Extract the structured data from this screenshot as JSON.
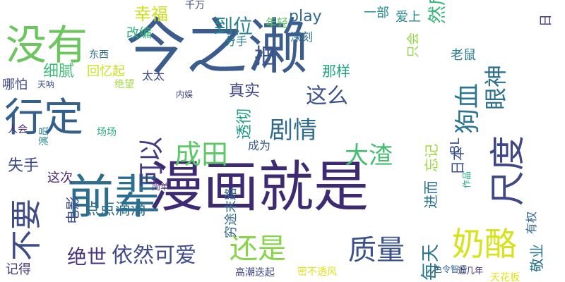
{
  "background": "#ffffff",
  "words": [
    {
      "text": "今之濑",
      "color": "#3b5c8c"
    },
    {
      "text": "漫画就是",
      "color": "#3d2a72"
    },
    {
      "text": "前辈",
      "color": "#2c6e8e"
    },
    {
      "text": "没有",
      "color": "#6cc55e"
    },
    {
      "text": "行定",
      "color": "#355f8d"
    },
    {
      "text": "尺度",
      "color": "#3f4788"
    },
    {
      "text": "奶酪",
      "color": "#d8e219"
    },
    {
      "text": "不要",
      "color": "#3e4b89"
    },
    {
      "text": "质量",
      "color": "#3b528b"
    },
    {
      "text": "还是",
      "color": "#86d549"
    },
    {
      "text": "成田",
      "color": "#5ac864"
    },
    {
      "text": "狗血",
      "color": "#2b758e"
    },
    {
      "text": "可以",
      "color": "#443a83"
    },
    {
      "text": "剧情",
      "color": "#2f6b8e"
    },
    {
      "text": "大渣",
      "color": "#44bf70"
    },
    {
      "text": "眼神",
      "color": "#2d708e"
    },
    {
      "text": "依然可爱",
      "color": "#3f4a8a"
    },
    {
      "text": "绝世",
      "color": "#46337e"
    },
    {
      "text": "这么",
      "color": "#3b518b"
    },
    {
      "text": "到位",
      "color": "#26828e"
    },
    {
      "text": "幸福",
      "color": "#cde11d"
    },
    {
      "text": "然后",
      "color": "#35b779"
    },
    {
      "text": "细腻",
      "color": "#3dbc74"
    },
    {
      "text": "点点滴滴",
      "color": "#2e6f8e"
    },
    {
      "text": "每天",
      "color": "#2a768e"
    },
    {
      "text": "真实",
      "color": "#404688"
    },
    {
      "text": "透彻",
      "color": "#1f9e89"
    },
    {
      "text": "失手",
      "color": "#3e4989"
    },
    {
      "text": "那样",
      "color": "#21a685"
    },
    {
      "text": "把",
      "color": "#3b528b"
    },
    {
      "text": "play",
      "color": "#31688e"
    },
    {
      "text": "改编",
      "color": "#30b07a"
    },
    {
      "text": "回忆起",
      "color": "#cae11f"
    },
    {
      "text": "电影",
      "color": "#3e4c8a"
    },
    {
      "text": "这次",
      "color": "#482576"
    },
    {
      "text": "忘记",
      "color": "#9bd93c"
    },
    {
      "text": "进而",
      "color": "#2c728e"
    },
    {
      "text": "日本",
      "color": "#3c4f8a"
    },
    {
      "text": "敬业",
      "color": "#2a778e"
    },
    {
      "text": "哪怕",
      "color": "#3f4889"
    },
    {
      "text": "一部",
      "color": "#228c8d"
    },
    {
      "text": "爱上",
      "color": "#24878e"
    },
    {
      "text": "穷途末路",
      "color": "#31688e"
    },
    {
      "text": "只会",
      "color": "#93d741"
    },
    {
      "text": "老鼠",
      "color": "#297b8e"
    },
    {
      "text": "深刻",
      "color": "#2d708e"
    },
    {
      "text": "年轻",
      "color": "#5cc863"
    },
    {
      "text": "分手",
      "color": "#26818e"
    },
    {
      "text": "人会",
      "color": "#482979"
    },
    {
      "text": "记得",
      "color": "#443983"
    },
    {
      "text": "太太",
      "color": "#3e4c8a"
    },
    {
      "text": "成为",
      "color": "#375b8d"
    },
    {
      "text": "作品",
      "color": "#22a884"
    },
    {
      "text": "简单",
      "color": "#472c7a"
    },
    {
      "text": "高潮迭起",
      "color": "#3e4989"
    },
    {
      "text": "密不透风",
      "color": "#dde318"
    },
    {
      "text": "色令智昏",
      "color": "#32658e"
    },
    {
      "text": "天花板",
      "color": "#e2e418"
    },
    {
      "text": "近几年",
      "color": "#472d7b"
    },
    {
      "text": "有权",
      "color": "#31688e"
    },
    {
      "text": "千万",
      "color": "#3f4788"
    },
    {
      "text": "内娱",
      "color": "#414487"
    },
    {
      "text": "绝望",
      "color": "#9dd93b"
    },
    {
      "text": "天呐",
      "color": "#3b528b"
    },
    {
      "text": "场场",
      "color": "#29af7f"
    },
    {
      "text": "演员",
      "color": "#25848e"
    },
    {
      "text": "东西",
      "color": "#2f6c8e"
    },
    {
      "text": "BL",
      "color": "#3c508b"
    },
    {
      "text": "日",
      "color": "#46327e"
    }
  ]
}
